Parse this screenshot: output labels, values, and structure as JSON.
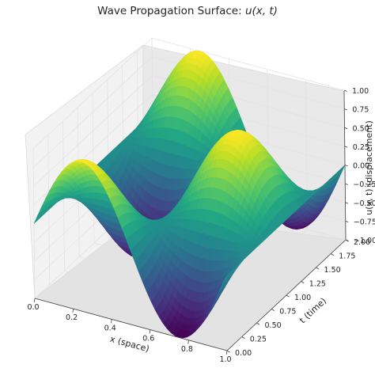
{
  "chart_data": {
    "type": "surface",
    "title_prefix": "Wave Propagation Surface: ",
    "title_math": "u(x, t)",
    "xlabel": "x (space)",
    "ylabel": "t (time)",
    "zlabel": "u(x, t) (displacement)",
    "xlim": [
      0.0,
      1.0
    ],
    "ylim": [
      0.0,
      2.0
    ],
    "zlim": [
      -1.0,
      1.0
    ],
    "x_ticks": [
      "0.0",
      "0.2",
      "0.4",
      "0.6",
      "0.8",
      "1.0"
    ],
    "y_ticks": [
      "0.00",
      "0.25",
      "0.50",
      "0.75",
      "1.00",
      "1.25",
      "1.50",
      "1.75",
      "2.00"
    ],
    "z_ticks": [
      "−1.00",
      "−0.75",
      "−0.50",
      "−0.25",
      "0.00",
      "0.25",
      "0.50",
      "0.75",
      "1.00"
    ],
    "function": "u(x,t) = sin(2πx) · cos(πt)",
    "colormap": "viridis",
    "grid": true
  }
}
